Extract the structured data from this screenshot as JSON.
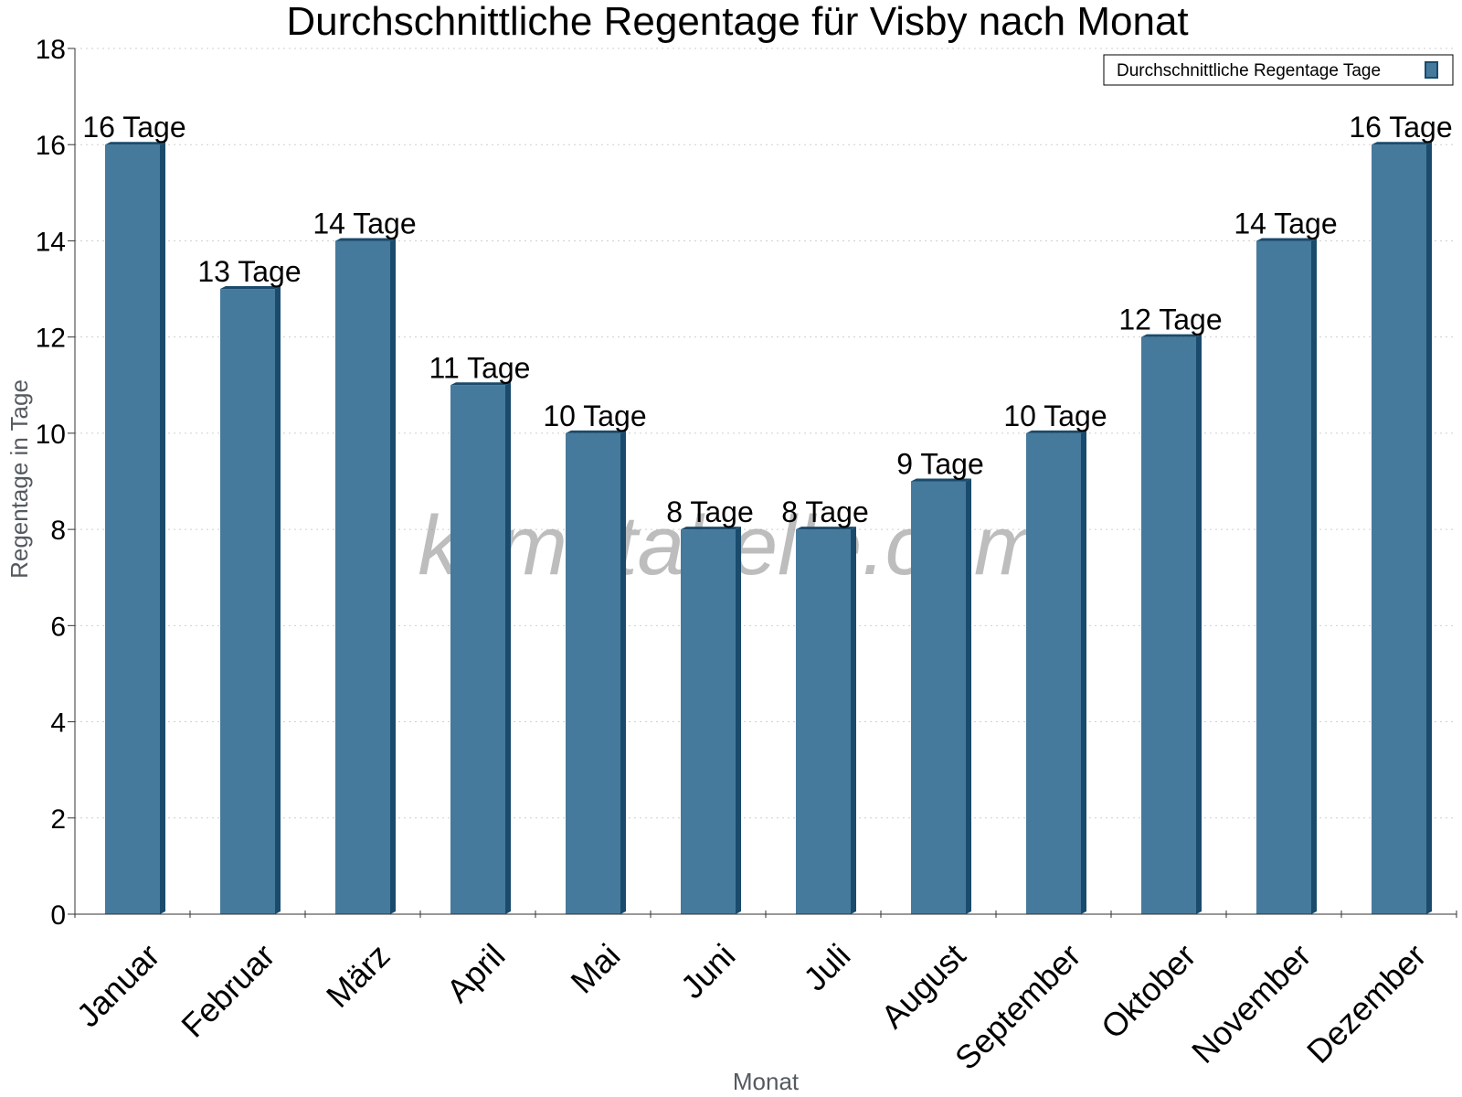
{
  "chart_data": {
    "type": "bar",
    "title": "Durchschnittliche Regentage für Visby nach Monat",
    "xlabel": "Monat",
    "ylabel": "Regentage in Tage",
    "categories": [
      "Januar",
      "Februar",
      "März",
      "April",
      "Mai",
      "Juni",
      "Juli",
      "August",
      "September",
      "Oktober",
      "November",
      "Dezember"
    ],
    "series": [
      {
        "name": "Durchschnittliche Regentage Tage",
        "values": [
          16,
          13,
          14,
          11,
          10,
          8,
          8,
          9,
          10,
          12,
          14,
          16
        ],
        "labels": [
          "16 Tage",
          "13 Tage",
          "14 Tage",
          "11 Tage",
          "10 Tage",
          "8 Tage",
          "8 Tage",
          "9 Tage",
          "10 Tage",
          "12 Tage",
          "14 Tage",
          "16 Tage"
        ]
      }
    ],
    "ylim": [
      0,
      18
    ],
    "yticks": [
      0,
      2,
      4,
      6,
      8,
      10,
      12,
      14,
      16,
      18
    ],
    "grid": true,
    "legend_position": "top-right",
    "colors": {
      "bar_front": "#467a9c",
      "bar_side": "#1a4b6c",
      "grid": "#cfcfcf",
      "axis": "#333333"
    }
  },
  "watermark": "klimatabelle.com"
}
